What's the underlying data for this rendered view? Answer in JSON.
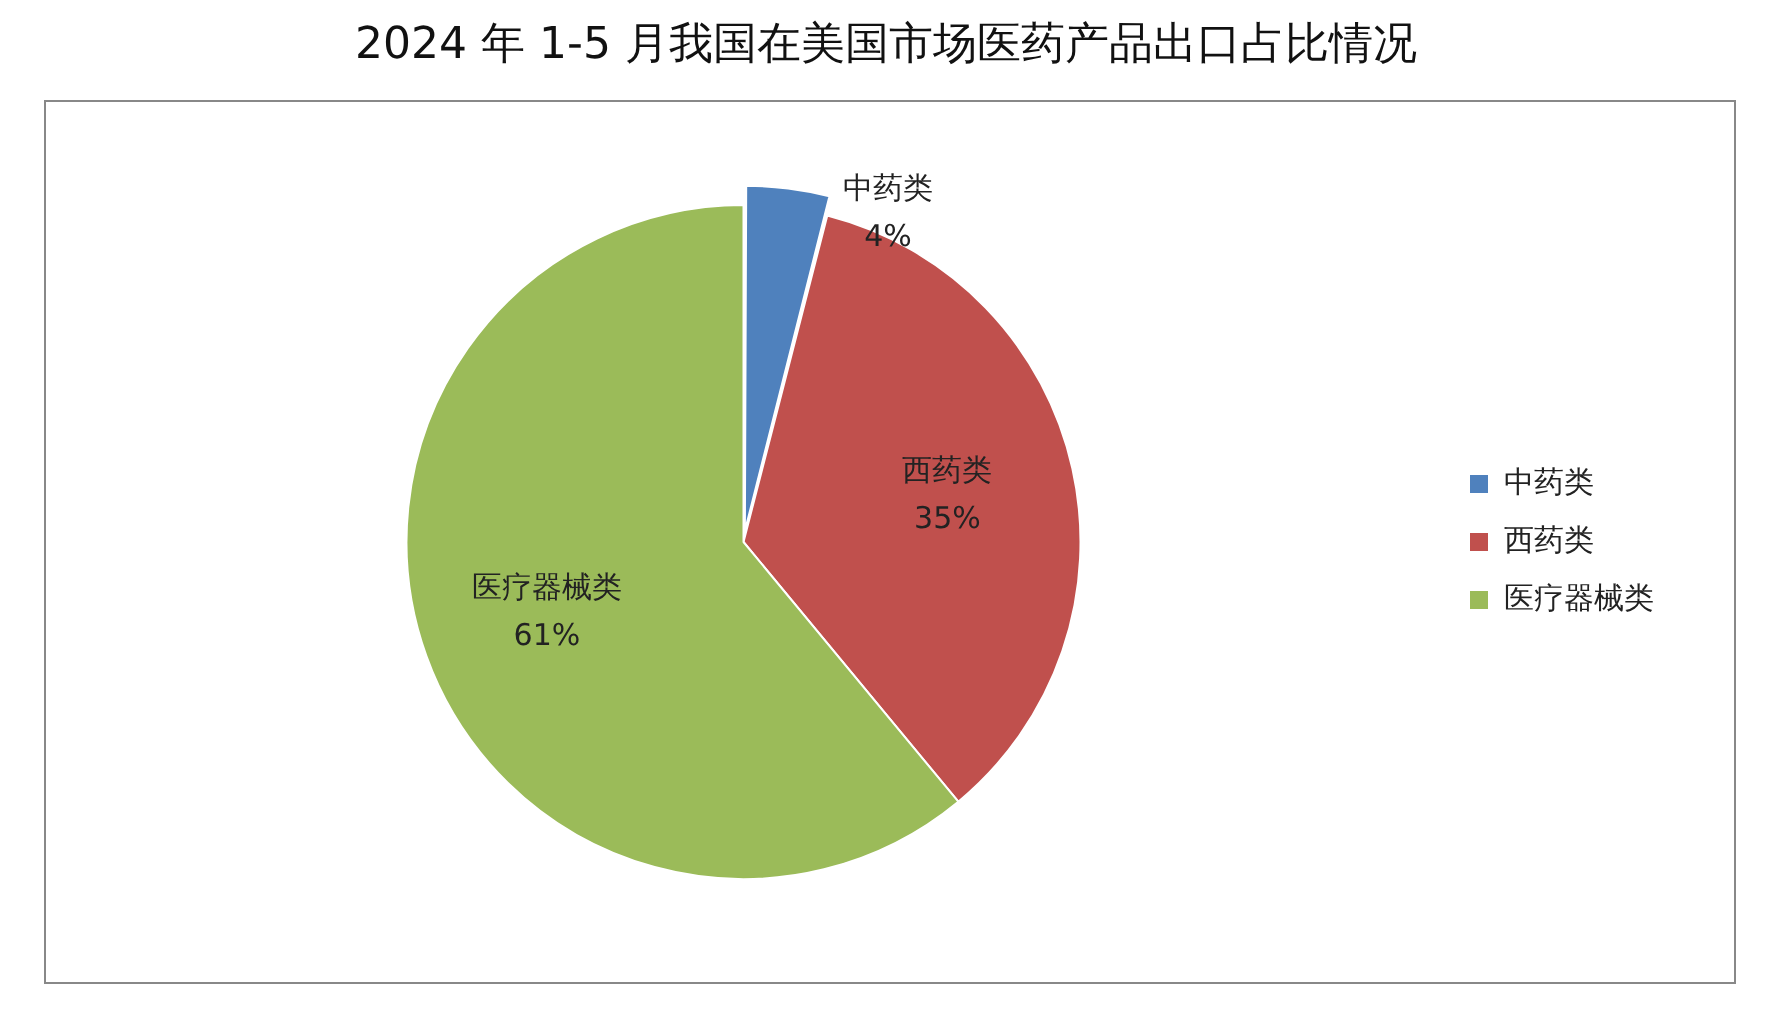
{
  "chart_data": {
    "type": "pie",
    "title": "2024 年 1-5 月我国在美国市场医药产品出口占比情况",
    "categories": [
      "中药类",
      "西药类",
      "医疗器械类"
    ],
    "values": [
      4,
      35,
      61
    ],
    "value_labels": [
      "4%",
      "35%",
      "61%"
    ],
    "colors": [
      "#4f81bd",
      "#c0504d",
      "#9bbb59"
    ],
    "legend": "right"
  }
}
